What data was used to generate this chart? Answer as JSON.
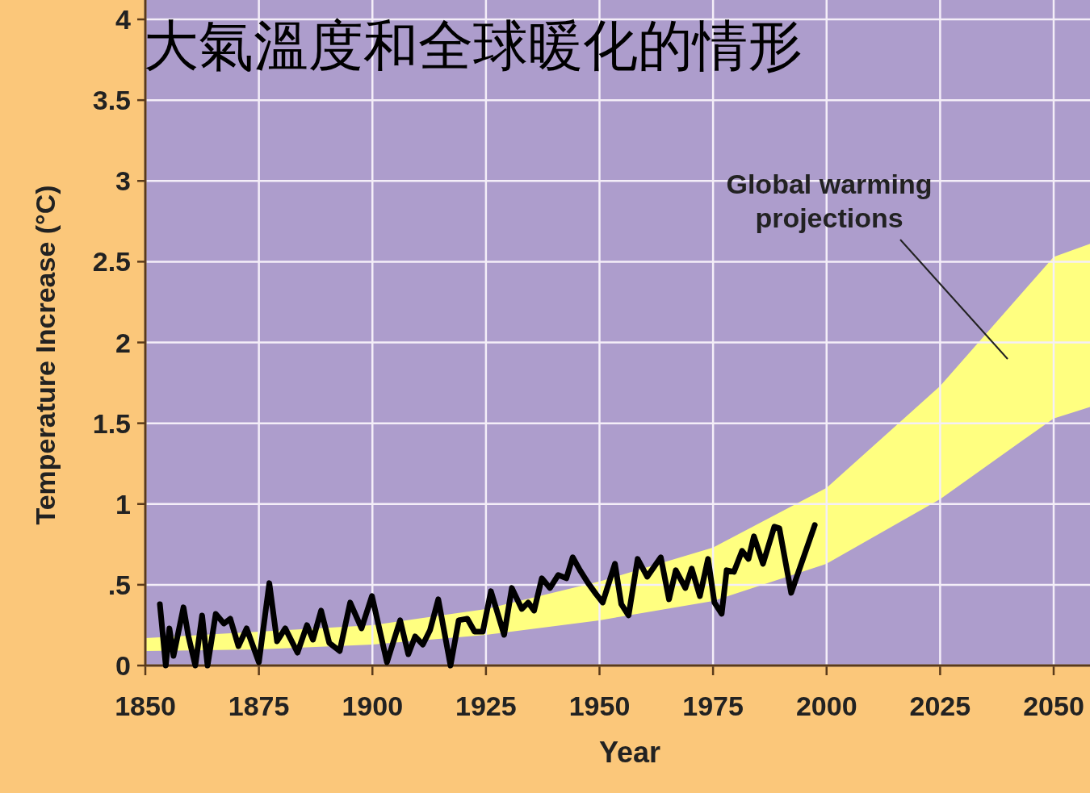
{
  "chart_data": {
    "type": "line",
    "title": "大氣溫度和全球暖化的情形",
    "xlabel": "Year",
    "ylabel": "Temperature Increase (°C)",
    "xlim": [
      1850,
      2058
    ],
    "ylim": [
      0,
      4.12
    ],
    "xticks": [
      1850,
      1875,
      1900,
      1925,
      1950,
      1975,
      2000,
      2025,
      2050
    ],
    "yticks": [
      0,
      {
        "value": 0.5,
        "label": ".5"
      },
      1,
      1.5,
      2,
      2.5,
      3,
      3.5,
      4
    ],
    "grid": true,
    "annotations": [
      "Global warming projections"
    ],
    "series": [
      {
        "type": "area",
        "color": "#ffff80",
        "x": [
          1850,
          1875,
          1900,
          1925,
          1950,
          1975,
          2000,
          2025,
          2050,
          2058
        ],
        "values": [
          0.17,
          0.21,
          0.25,
          0.35,
          0.52,
          0.73,
          1.1,
          1.73,
          2.53,
          2.61
        ]
      },
      {
        "type": "area",
        "color": "#ad9dcc",
        "x": [
          1850,
          1875,
          1900,
          1925,
          1950,
          1975,
          2000,
          2025,
          2050,
          2058
        ],
        "values": [
          0.09,
          0.1,
          0.13,
          0.19,
          0.28,
          0.4,
          0.63,
          1.03,
          1.53,
          1.6
        ]
      },
      {
        "color": "#000000",
        "x": [
          1853.2,
          1854.5,
          1855.3,
          1856.2,
          1858.4,
          1859.5,
          1861,
          1862.5,
          1863.7,
          1865.5,
          1867.3,
          1868.7,
          1870.5,
          1872.3,
          1875,
          1877.3,
          1879,
          1880.8,
          1883.5,
          1885.6,
          1886.9,
          1888.7,
          1890.5,
          1892.8,
          1895.1,
          1897.6,
          1899.9,
          1903.2,
          1906.1,
          1907.9,
          1909.4,
          1911.1,
          1912.7,
          1914.5,
          1917.2,
          1919,
          1920.9,
          1922.5,
          1924.3,
          1926.1,
          1929,
          1930.7,
          1932.9,
          1934.3,
          1935.6,
          1937.3,
          1939.1,
          1940.9,
          1942.7,
          1944.1,
          1945.7,
          1947.5,
          1949.3,
          1950.7,
          1953.4,
          1954.8,
          1956.4,
          1958.4,
          1960.5,
          1963.5,
          1965.3,
          1966.8,
          1968.9,
          1970.3,
          1972.1,
          1973.9,
          1975.3,
          1976.9,
          1978,
          1979.6,
          1981.4,
          1982.8,
          1984,
          1986,
          1988.5,
          1989.6,
          1992.2,
          1997.4
        ],
        "values": [
          0.38,
          0.0,
          0.23,
          0.06,
          0.36,
          0.18,
          0.0,
          0.31,
          0.0,
          0.32,
          0.26,
          0.29,
          0.12,
          0.23,
          0.02,
          0.51,
          0.15,
          0.23,
          0.08,
          0.25,
          0.16,
          0.34,
          0.14,
          0.09,
          0.39,
          0.23,
          0.43,
          0.02,
          0.28,
          0.07,
          0.18,
          0.13,
          0.22,
          0.41,
          0.0,
          0.28,
          0.29,
          0.21,
          0.21,
          0.46,
          0.19,
          0.48,
          0.35,
          0.39,
          0.34,
          0.54,
          0.48,
          0.56,
          0.54,
          0.67,
          0.59,
          0.51,
          0.44,
          0.39,
          0.63,
          0.38,
          0.31,
          0.66,
          0.55,
          0.67,
          0.41,
          0.59,
          0.48,
          0.6,
          0.43,
          0.66,
          0.39,
          0.32,
          0.59,
          0.58,
          0.71,
          0.66,
          0.8,
          0.63,
          0.86,
          0.85,
          0.45,
          0.87
        ]
      }
    ]
  }
}
